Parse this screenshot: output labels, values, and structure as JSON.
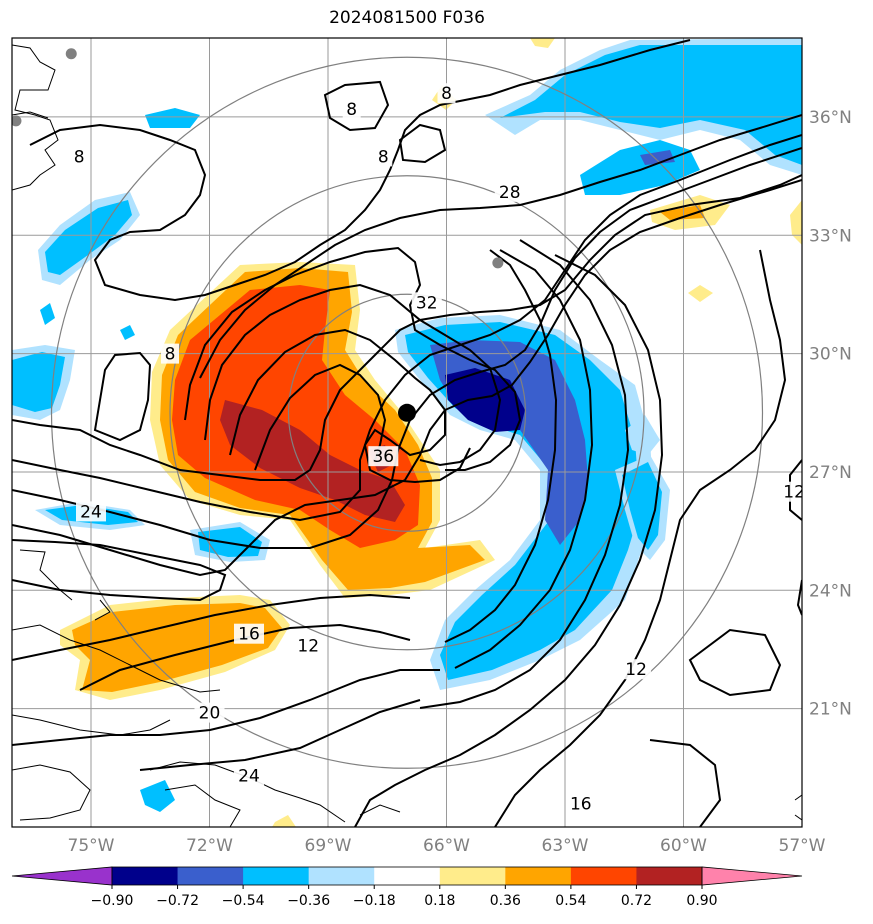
{
  "chart_data": {
    "type": "contour-map",
    "title": "2024081500 F036",
    "lon_range": [
      -77,
      -57
    ],
    "lat_range": [
      18,
      38
    ],
    "lon_ticks": [
      {
        "value": -75,
        "label": "75°W"
      },
      {
        "value": -72,
        "label": "72°W"
      },
      {
        "value": -69,
        "label": "69°W"
      },
      {
        "value": -66,
        "label": "66°W"
      },
      {
        "value": -63,
        "label": "63°W"
      },
      {
        "value": -60,
        "label": "60°W"
      },
      {
        "value": -57,
        "label": "57°W"
      }
    ],
    "lat_ticks": [
      {
        "value": 21,
        "label": "21°N"
      },
      {
        "value": 24,
        "label": "24°N"
      },
      {
        "value": 27,
        "label": "27°N"
      },
      {
        "value": 30,
        "label": "30°N"
      },
      {
        "value": 33,
        "label": "33°N"
      },
      {
        "value": 36,
        "label": "36°N"
      }
    ],
    "grid": true,
    "storm_center": {
      "lon": -67.0,
      "lat": 28.5
    },
    "secondary_points": [
      {
        "lon": -75.5,
        "lat": 37.6
      },
      {
        "lon": -76.9,
        "lat": 35.9
      },
      {
        "lon": -64.7,
        "lat": 32.3
      }
    ],
    "range_rings_deg": [
      3,
      6,
      9
    ],
    "colorbar": {
      "orientation": "horizontal",
      "extend": "both",
      "levels": [
        "-0.90",
        "-0.72",
        "-0.54",
        "-0.36",
        "-0.18",
        "0.18",
        "0.36",
        "0.54",
        "0.72",
        "0.90"
      ],
      "colors": [
        "#9932cc",
        "#00008b",
        "#3a5fcd",
        "#00bfff",
        "#b0e2ff",
        "#ffffff",
        "#ffec8b",
        "#ffa500",
        "#ff4500",
        "#b22222",
        "#ff82ab"
      ]
    },
    "contour_labels": [
      {
        "text": "8",
        "lon": -75.3,
        "lat": 35.0
      },
      {
        "text": "8",
        "lon": -68.4,
        "lat": 36.2
      },
      {
        "text": "8",
        "lon": -67.6,
        "lat": 35.0
      },
      {
        "text": "8",
        "lon": -66.0,
        "lat": 36.6
      },
      {
        "text": "8",
        "lon": -73.0,
        "lat": 30.0
      },
      {
        "text": "28",
        "lon": -64.4,
        "lat": 34.1
      },
      {
        "text": "32",
        "lon": -66.5,
        "lat": 31.3
      },
      {
        "text": "36",
        "lon": -67.6,
        "lat": 27.4
      },
      {
        "text": "24",
        "lon": -75.0,
        "lat": 26.0
      },
      {
        "text": "16",
        "lon": -71.0,
        "lat": 22.9
      },
      {
        "text": "12",
        "lon": -69.5,
        "lat": 22.6
      },
      {
        "text": "20",
        "lon": -72.0,
        "lat": 20.9
      },
      {
        "text": "24",
        "lon": -71.0,
        "lat": 19.3
      },
      {
        "text": "16",
        "lon": -62.6,
        "lat": 18.6
      },
      {
        "text": "12",
        "lon": -61.2,
        "lat": 22.0
      },
      {
        "text": "12",
        "lon": -57.2,
        "lat": 26.5
      }
    ]
  }
}
